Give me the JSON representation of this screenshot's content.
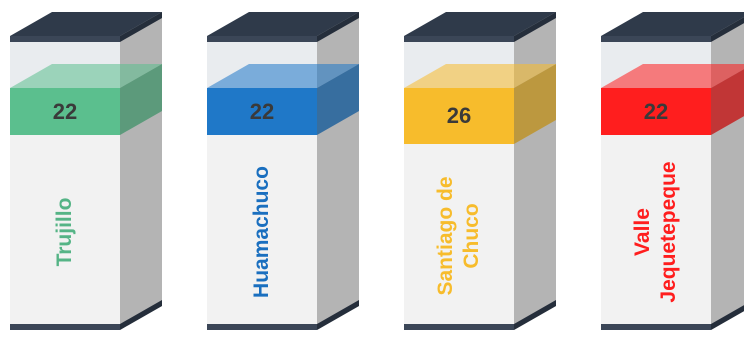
{
  "chart_data": {
    "type": "bar",
    "categories": [
      {
        "lines": [
          "Trujillo"
        ]
      },
      {
        "lines": [
          "Huamachuco"
        ]
      },
      {
        "lines": [
          "Santiago de",
          "Chuco"
        ]
      },
      {
        "lines": [
          "Valle",
          "Jequetepeque"
        ]
      }
    ],
    "values": [
      22,
      22,
      26,
      22
    ],
    "colors": [
      "#5bbf8e",
      "#1f78c8",
      "#f7bc2c",
      "#ff1e1e"
    ],
    "label_colors": [
      "#55b486",
      "#1a6fbf",
      "#f7bc2c",
      "#ff1e1e"
    ],
    "title": ""
  }
}
